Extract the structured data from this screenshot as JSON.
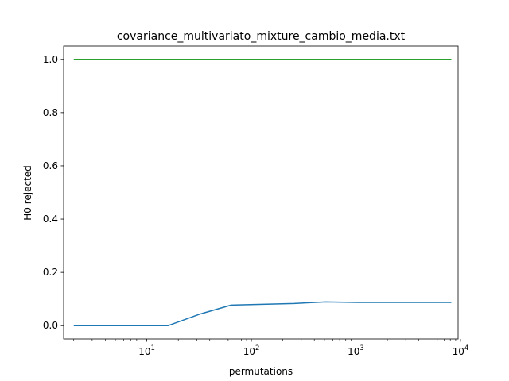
{
  "chart_data": {
    "type": "line",
    "title": "covariance_multivariato_mixture_cambio_media.txt",
    "xlabel": "permutations",
    "ylabel": "H0 rejected",
    "xscale": "log",
    "xlim": [
      1.6,
      9500
    ],
    "ylim": [
      -0.05,
      1.05
    ],
    "yticks": [
      0.0,
      0.2,
      0.4,
      0.6,
      0.8,
      1.0
    ],
    "ytick_labels": [
      "0.0",
      "0.2",
      "0.4",
      "0.6",
      "0.8",
      "1.0"
    ],
    "xticks": [
      10,
      100,
      1000,
      10000
    ],
    "xtick_labels": [
      {
        "base": "10",
        "exp": "1"
      },
      {
        "base": "10",
        "exp": "2"
      },
      {
        "base": "10",
        "exp": "3"
      },
      {
        "base": "10",
        "exp": "4"
      }
    ],
    "grid": false,
    "series": [
      {
        "color": "#1f77b4",
        "x": [
          2,
          4,
          8,
          16,
          32,
          64,
          128,
          256,
          512,
          1024,
          2048,
          4096,
          8192
        ],
        "y": [
          0.0,
          0.0,
          0.0,
          0.0,
          0.043,
          0.077,
          0.08,
          0.083,
          0.089,
          0.087,
          0.087,
          0.087,
          0.087
        ]
      },
      {
        "color": "#2ca02c",
        "x": [
          2,
          4,
          8,
          16,
          32,
          64,
          128,
          256,
          512,
          1024,
          2048,
          4096,
          8192
        ],
        "y": [
          1.0,
          1.0,
          1.0,
          1.0,
          1.0,
          1.0,
          1.0,
          1.0,
          1.0,
          1.0,
          1.0,
          1.0,
          1.0
        ]
      }
    ]
  }
}
